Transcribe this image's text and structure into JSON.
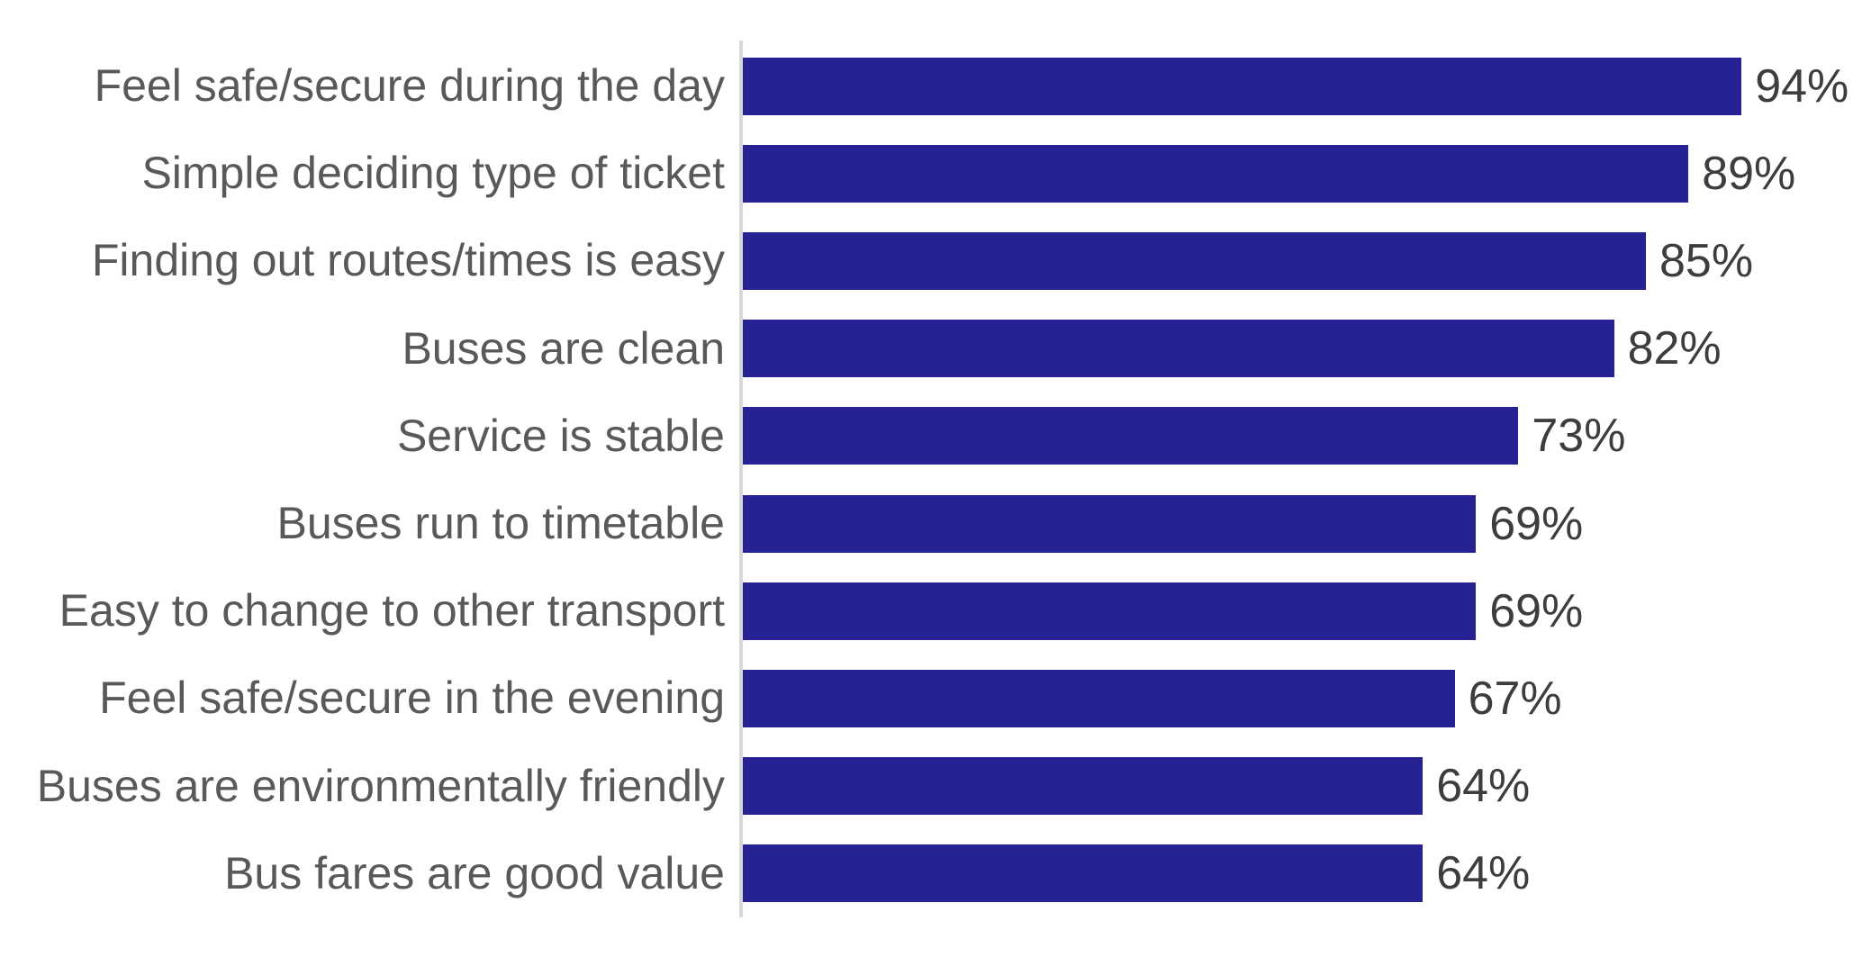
{
  "chart_data": {
    "type": "bar",
    "orientation": "horizontal",
    "title": "",
    "xlabel": "",
    "ylabel": "",
    "xlim": [
      0,
      100
    ],
    "grid": false,
    "legend": "none",
    "categories": [
      "Feel safe/secure during the day",
      "Simple deciding type of ticket",
      "Finding out routes/times is easy",
      "Buses are clean",
      "Service is stable",
      "Buses run to timetable",
      "Easy to change to other transport",
      "Feel safe/secure in the evening",
      "Buses are environmentally friendly",
      "Bus fares are good value"
    ],
    "values": [
      94,
      89,
      85,
      82,
      73,
      69,
      69,
      67,
      64,
      64
    ],
    "value_labels": [
      "94%",
      "89%",
      "85%",
      "82%",
      "73%",
      "69%",
      "69%",
      "67%",
      "64%",
      "64%"
    ],
    "colors": {
      "bar_fill": "#272293",
      "category_label": "#595959",
      "value_label": "#3d3d3d",
      "axis_line": "#d9d9d9",
      "background": "#ffffff"
    }
  }
}
